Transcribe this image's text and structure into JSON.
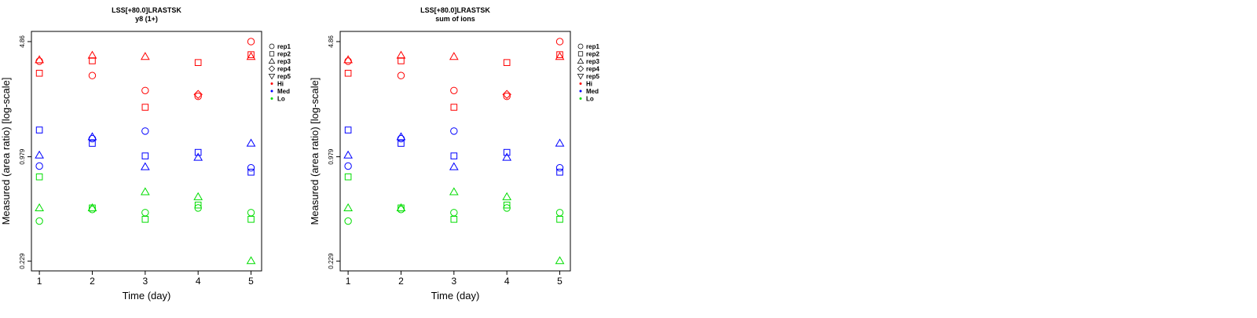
{
  "colors": {
    "Hi": "#ff0000",
    "Med": "#0000ff",
    "Lo": "#00dd00",
    "axis": "#000000"
  },
  "chart_data": [
    {
      "type": "scatter",
      "title": "LSS[+80.0]LRASTSK",
      "subtitle": "y8 (1+)",
      "xlabel": "Time (day)",
      "ylabel": "Measured (area ratio) [log-scale]",
      "x_ticks": [
        "1",
        "2",
        "3",
        "4",
        "5"
      ],
      "y_ticks": [
        "0.229",
        "0.979",
        "4.86"
      ],
      "y_scale": "log",
      "ylim": [
        0.2,
        5.6
      ],
      "xlim": [
        0.85,
        5.2
      ],
      "grid": false,
      "legend_position": "right",
      "legend": [
        {
          "label": "rep1",
          "marker": "circle",
          "color": "#000000"
        },
        {
          "label": "rep2",
          "marker": "square",
          "color": "#000000"
        },
        {
          "label": "rep3",
          "marker": "triangle-up",
          "color": "#000000"
        },
        {
          "label": "rep4",
          "marker": "diamond",
          "color": "#000000"
        },
        {
          "label": "rep5",
          "marker": "triangle-down",
          "color": "#000000"
        },
        {
          "label": "Hi",
          "marker": "dot",
          "color": "#ff0000"
        },
        {
          "label": "Med",
          "marker": "dot",
          "color": "#0000ff"
        },
        {
          "label": "Lo",
          "marker": "dot",
          "color": "#00dd00"
        }
      ],
      "series": [
        {
          "level": "Hi",
          "rep": "rep1",
          "values": [
            [
              1,
              3.7
            ],
            [
              2,
              3.03
            ],
            [
              3,
              2.46
            ],
            [
              4,
              2.27
            ],
            [
              5,
              4.86
            ]
          ]
        },
        {
          "level": "Hi",
          "rep": "rep2",
          "values": [
            [
              1,
              3.13
            ],
            [
              2,
              3.72
            ],
            [
              3,
              1.95
            ],
            [
              4,
              3.63
            ],
            [
              5,
              4.05
            ]
          ]
        },
        {
          "level": "Hi",
          "rep": "rep3",
          "values": [
            [
              1,
              3.77
            ],
            [
              2,
              4.01
            ],
            [
              3,
              3.94
            ],
            [
              5,
              3.94
            ]
          ]
        },
        {
          "level": "Hi",
          "rep": "rep4",
          "values": [
            [
              4,
              2.33
            ]
          ]
        },
        {
          "level": "Med",
          "rep": "rep1",
          "values": [
            [
              1,
              0.86
            ],
            [
              2,
              1.26
            ],
            [
              3,
              1.4
            ],
            [
              5,
              0.84
            ]
          ]
        },
        {
          "level": "Med",
          "rep": "rep2",
          "values": [
            [
              1,
              1.42
            ],
            [
              2,
              1.18
            ],
            [
              3,
              0.99
            ],
            [
              4,
              1.04
            ],
            [
              5,
              0.79
            ]
          ]
        },
        {
          "level": "Med",
          "rep": "rep3",
          "values": [
            [
              1,
              1.0
            ],
            [
              2,
              1.29
            ],
            [
              3,
              0.85
            ],
            [
              4,
              0.97
            ],
            [
              5,
              1.18
            ]
          ]
        },
        {
          "level": "Lo",
          "rep": "rep1",
          "values": [
            [
              1,
              0.4
            ],
            [
              2,
              0.47
            ],
            [
              3,
              0.45
            ],
            [
              4,
              0.48
            ],
            [
              5,
              0.45
            ]
          ]
        },
        {
          "level": "Lo",
          "rep": "rep2",
          "values": [
            [
              1,
              0.74
            ],
            [
              2,
              0.48
            ],
            [
              3,
              0.41
            ],
            [
              4,
              0.5
            ],
            [
              5,
              0.41
            ]
          ]
        },
        {
          "level": "Lo",
          "rep": "rep3",
          "values": [
            [
              1,
              0.48
            ],
            [
              2,
              0.48
            ],
            [
              3,
              0.6
            ],
            [
              4,
              0.56
            ],
            [
              5,
              0.23
            ]
          ]
        }
      ]
    },
    {
      "type": "scatter",
      "title": "LSS[+80.0]LRASTSK",
      "subtitle": "sum of ions",
      "xlabel": "Time (day)",
      "ylabel": "Measured (area ratio) [log-scale]",
      "x_ticks": [
        "1",
        "2",
        "3",
        "4",
        "5"
      ],
      "y_ticks": [
        "0.229",
        "0.979",
        "4.86"
      ],
      "y_scale": "log",
      "ylim": [
        0.2,
        5.6
      ],
      "xlim": [
        0.85,
        5.2
      ],
      "grid": false,
      "legend_position": "right",
      "legend": [
        {
          "label": "rep1",
          "marker": "circle",
          "color": "#000000"
        },
        {
          "label": "rep2",
          "marker": "square",
          "color": "#000000"
        },
        {
          "label": "rep3",
          "marker": "triangle-up",
          "color": "#000000"
        },
        {
          "label": "rep4",
          "marker": "diamond",
          "color": "#000000"
        },
        {
          "label": "rep5",
          "marker": "triangle-down",
          "color": "#000000"
        },
        {
          "label": "Hi",
          "marker": "dot",
          "color": "#ff0000"
        },
        {
          "label": "Med",
          "marker": "dot",
          "color": "#0000ff"
        },
        {
          "label": "Lo",
          "marker": "dot",
          "color": "#00dd00"
        }
      ],
      "series": [
        {
          "level": "Hi",
          "rep": "rep1",
          "values": [
            [
              1,
              3.7
            ],
            [
              2,
              3.03
            ],
            [
              3,
              2.46
            ],
            [
              4,
              2.27
            ],
            [
              5,
              4.86
            ]
          ]
        },
        {
          "level": "Hi",
          "rep": "rep2",
          "values": [
            [
              1,
              3.13
            ],
            [
              2,
              3.72
            ],
            [
              3,
              1.95
            ],
            [
              4,
              3.63
            ],
            [
              5,
              4.05
            ]
          ]
        },
        {
          "level": "Hi",
          "rep": "rep3",
          "values": [
            [
              1,
              3.77
            ],
            [
              2,
              4.01
            ],
            [
              3,
              3.94
            ],
            [
              5,
              3.94
            ]
          ]
        },
        {
          "level": "Hi",
          "rep": "rep4",
          "values": [
            [
              4,
              2.33
            ]
          ]
        },
        {
          "level": "Med",
          "rep": "rep1",
          "values": [
            [
              1,
              0.86
            ],
            [
              2,
              1.26
            ],
            [
              3,
              1.4
            ],
            [
              5,
              0.84
            ]
          ]
        },
        {
          "level": "Med",
          "rep": "rep2",
          "values": [
            [
              1,
              1.42
            ],
            [
              2,
              1.18
            ],
            [
              3,
              0.99
            ],
            [
              4,
              1.04
            ],
            [
              5,
              0.79
            ]
          ]
        },
        {
          "level": "Med",
          "rep": "rep3",
          "values": [
            [
              1,
              1.0
            ],
            [
              2,
              1.29
            ],
            [
              3,
              0.85
            ],
            [
              4,
              0.97
            ],
            [
              5,
              1.18
            ]
          ]
        },
        {
          "level": "Lo",
          "rep": "rep1",
          "values": [
            [
              1,
              0.4
            ],
            [
              2,
              0.47
            ],
            [
              3,
              0.45
            ],
            [
              4,
              0.48
            ],
            [
              5,
              0.45
            ]
          ]
        },
        {
          "level": "Lo",
          "rep": "rep2",
          "values": [
            [
              1,
              0.74
            ],
            [
              2,
              0.48
            ],
            [
              3,
              0.41
            ],
            [
              4,
              0.5
            ],
            [
              5,
              0.41
            ]
          ]
        },
        {
          "level": "Lo",
          "rep": "rep3",
          "values": [
            [
              1,
              0.48
            ],
            [
              2,
              0.48
            ],
            [
              3,
              0.6
            ],
            [
              4,
              0.56
            ],
            [
              5,
              0.23
            ]
          ]
        }
      ]
    }
  ]
}
